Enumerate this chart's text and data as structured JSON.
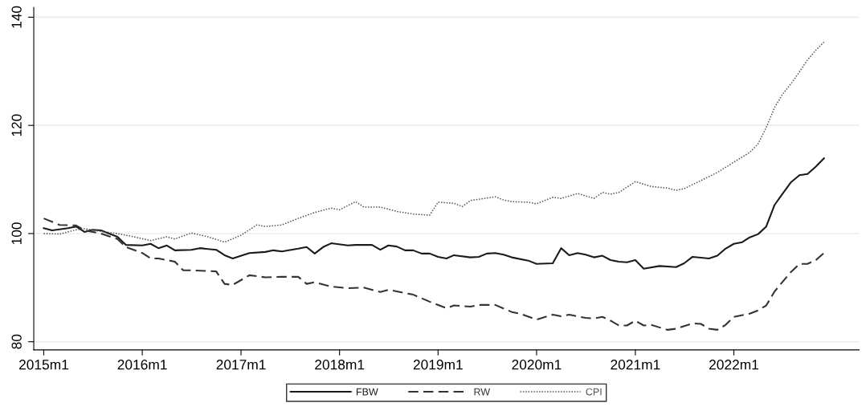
{
  "chart_data": {
    "type": "line",
    "xlim": [
      "2014-11-25",
      "2023-04-10"
    ],
    "ylim": [
      78.5,
      141.8
    ],
    "yticks": [
      80,
      100,
      120,
      140
    ],
    "xticks": [
      {
        "value": "2015-01",
        "label": "2015m1"
      },
      {
        "value": "2016-01",
        "label": "2016m1"
      },
      {
        "value": "2017-01",
        "label": "2017m1"
      },
      {
        "value": "2018-01",
        "label": "2018m1"
      },
      {
        "value": "2019-01",
        "label": "2019m1"
      },
      {
        "value": "2020-01",
        "label": "2020m1"
      },
      {
        "value": "2021-01",
        "label": "2021m1"
      },
      {
        "value": "2022-01",
        "label": "2022m1"
      }
    ],
    "grid": "y",
    "legend": "bottom",
    "series": [
      {
        "name": "FBW",
        "color": "#1a1a1a",
        "line_style": "solid",
        "x": [
          "2015-01",
          "2015-02",
          "2015-04",
          "2015-05",
          "2015-06",
          "2015-07",
          "2015-08",
          "2015-10",
          "2015-11",
          "2016-01",
          "2016-02",
          "2016-03",
          "2016-04",
          "2016-05",
          "2016-07",
          "2016-08",
          "2016-10",
          "2016-11",
          "2016-12",
          "2017-02",
          "2017-04",
          "2017-05",
          "2017-06",
          "2017-08",
          "2017-09",
          "2017-10",
          "2017-11",
          "2017-12",
          "2018-02",
          "2018-03",
          "2018-05",
          "2018-06",
          "2018-07",
          "2018-08",
          "2018-09",
          "2018-10",
          "2018-11",
          "2018-12",
          "2019-01",
          "2019-02",
          "2019-03",
          "2019-05",
          "2019-06",
          "2019-07",
          "2019-08",
          "2019-09",
          "2019-10",
          "2019-12",
          "2020-01",
          "2020-03",
          "2020-04",
          "2020-05",
          "2020-06",
          "2020-07",
          "2020-08",
          "2020-09",
          "2020-10",
          "2020-11",
          "2020-12",
          "2021-01",
          "2021-02",
          "2021-04",
          "2021-06",
          "2021-07",
          "2021-08",
          "2021-10",
          "2021-11",
          "2021-12",
          "2022-01",
          "2022-02",
          "2022-03",
          "2022-04",
          "2022-05",
          "2022-06",
          "2022-07",
          "2022-08",
          "2022-09",
          "2022-10",
          "2022-11",
          "2022-12"
        ],
        "values": [
          101.0,
          100.6,
          101.0,
          101.3,
          100.3,
          100.7,
          100.6,
          99.4,
          97.9,
          97.8,
          98.1,
          97.3,
          97.8,
          96.9,
          97.0,
          97.3,
          97.0,
          96.0,
          95.4,
          96.4,
          96.6,
          96.9,
          96.7,
          97.2,
          97.5,
          96.3,
          97.5,
          98.2,
          97.8,
          97.9,
          97.9,
          97.0,
          97.8,
          97.6,
          96.9,
          96.9,
          96.3,
          96.3,
          95.7,
          95.4,
          96.0,
          95.6,
          95.7,
          96.3,
          96.4,
          96.1,
          95.6,
          95.0,
          94.4,
          94.5,
          97.3,
          96.0,
          96.4,
          96.1,
          95.6,
          95.9,
          95.1,
          94.8,
          94.7,
          95.1,
          93.5,
          94.0,
          93.8,
          94.5,
          95.7,
          95.4,
          95.9,
          97.2,
          98.1,
          98.4,
          99.3,
          99.9,
          101.3,
          105.3,
          107.4,
          109.5,
          110.8,
          111.0,
          112.4,
          113.9
        ]
      },
      {
        "name": "RW",
        "color": "#333333",
        "line_style": "dashed",
        "x": [
          "2015-01",
          "2015-03",
          "2015-05",
          "2015-06",
          "2015-08",
          "2015-10",
          "2015-11",
          "2016-01",
          "2016-02",
          "2016-03",
          "2016-05",
          "2016-06",
          "2016-07",
          "2016-10",
          "2016-11",
          "2016-12",
          "2017-02",
          "2017-04",
          "2017-06",
          "2017-08",
          "2017-09",
          "2017-10",
          "2017-12",
          "2018-02",
          "2018-04",
          "2018-06",
          "2018-07",
          "2018-09",
          "2018-10",
          "2018-12",
          "2019-02",
          "2019-03",
          "2019-05",
          "2019-06",
          "2019-08",
          "2019-10",
          "2019-11",
          "2020-01",
          "2020-03",
          "2020-04",
          "2020-05",
          "2020-07",
          "2020-08",
          "2020-09",
          "2020-10",
          "2020-11",
          "2020-12",
          "2021-01",
          "2021-02",
          "2021-03",
          "2021-05",
          "2021-06",
          "2021-08",
          "2021-09",
          "2021-10",
          "2021-11",
          "2021-12",
          "2022-01",
          "2022-03",
          "2022-04",
          "2022-05",
          "2022-06",
          "2022-07",
          "2022-08",
          "2022-09",
          "2022-10",
          "2022-11",
          "2022-12"
        ],
        "values": [
          102.8,
          101.6,
          101.5,
          100.6,
          100.0,
          99.0,
          97.5,
          96.4,
          95.4,
          95.4,
          94.8,
          93.2,
          93.2,
          93.0,
          90.7,
          90.5,
          92.3,
          91.9,
          92.0,
          92.0,
          90.7,
          91.0,
          90.2,
          89.9,
          90.0,
          89.2,
          89.6,
          89.0,
          88.7,
          87.4,
          86.2,
          86.7,
          86.5,
          86.8,
          86.8,
          85.5,
          85.2,
          84.1,
          85.0,
          84.7,
          85.0,
          84.4,
          84.3,
          84.6,
          83.9,
          83.0,
          83.0,
          83.9,
          83.0,
          83.1,
          82.2,
          82.4,
          83.4,
          83.3,
          82.4,
          82.2,
          83.1,
          84.6,
          85.2,
          85.8,
          86.7,
          89.3,
          91.1,
          92.9,
          94.4,
          94.4,
          95.1,
          96.4
        ]
      },
      {
        "name": "CPI",
        "color": "#555555",
        "line_style": "dotted",
        "x": [
          "2015-01",
          "2015-03",
          "2015-05",
          "2015-06",
          "2015-08",
          "2015-10",
          "2015-12",
          "2016-02",
          "2016-04",
          "2016-05",
          "2016-07",
          "2016-09",
          "2016-11",
          "2017-01",
          "2017-03",
          "2017-04",
          "2017-06",
          "2017-08",
          "2017-10",
          "2017-12",
          "2018-01",
          "2018-03",
          "2018-04",
          "2018-06",
          "2018-08",
          "2018-10",
          "2018-12",
          "2019-01",
          "2019-03",
          "2019-04",
          "2019-05",
          "2019-08",
          "2019-09",
          "2019-10",
          "2019-12",
          "2020-01",
          "2020-03",
          "2020-04",
          "2020-06",
          "2020-08",
          "2020-09",
          "2020-10",
          "2020-11",
          "2021-01",
          "2021-03",
          "2021-05",
          "2021-06",
          "2021-07",
          "2021-09",
          "2021-11",
          "2022-01",
          "2022-03",
          "2022-04",
          "2022-05",
          "2022-06",
          "2022-07",
          "2022-08",
          "2022-09",
          "2022-10",
          "2022-11",
          "2022-12"
        ],
        "values": [
          100.0,
          99.9,
          100.7,
          100.9,
          100.4,
          100.0,
          99.4,
          98.7,
          99.4,
          99.0,
          100.1,
          99.4,
          98.4,
          99.7,
          101.6,
          101.3,
          101.6,
          102.8,
          103.9,
          104.7,
          104.4,
          105.9,
          104.9,
          104.9,
          104.1,
          103.6,
          103.4,
          105.8,
          105.6,
          105.0,
          106.1,
          106.8,
          106.2,
          105.9,
          105.8,
          105.5,
          106.7,
          106.5,
          107.4,
          106.5,
          107.6,
          107.3,
          107.6,
          109.6,
          108.7,
          108.4,
          108.0,
          108.3,
          109.8,
          111.3,
          113.2,
          115.0,
          116.6,
          119.6,
          123.3,
          125.8,
          127.7,
          129.9,
          132.1,
          133.9,
          135.4
        ]
      }
    ]
  }
}
